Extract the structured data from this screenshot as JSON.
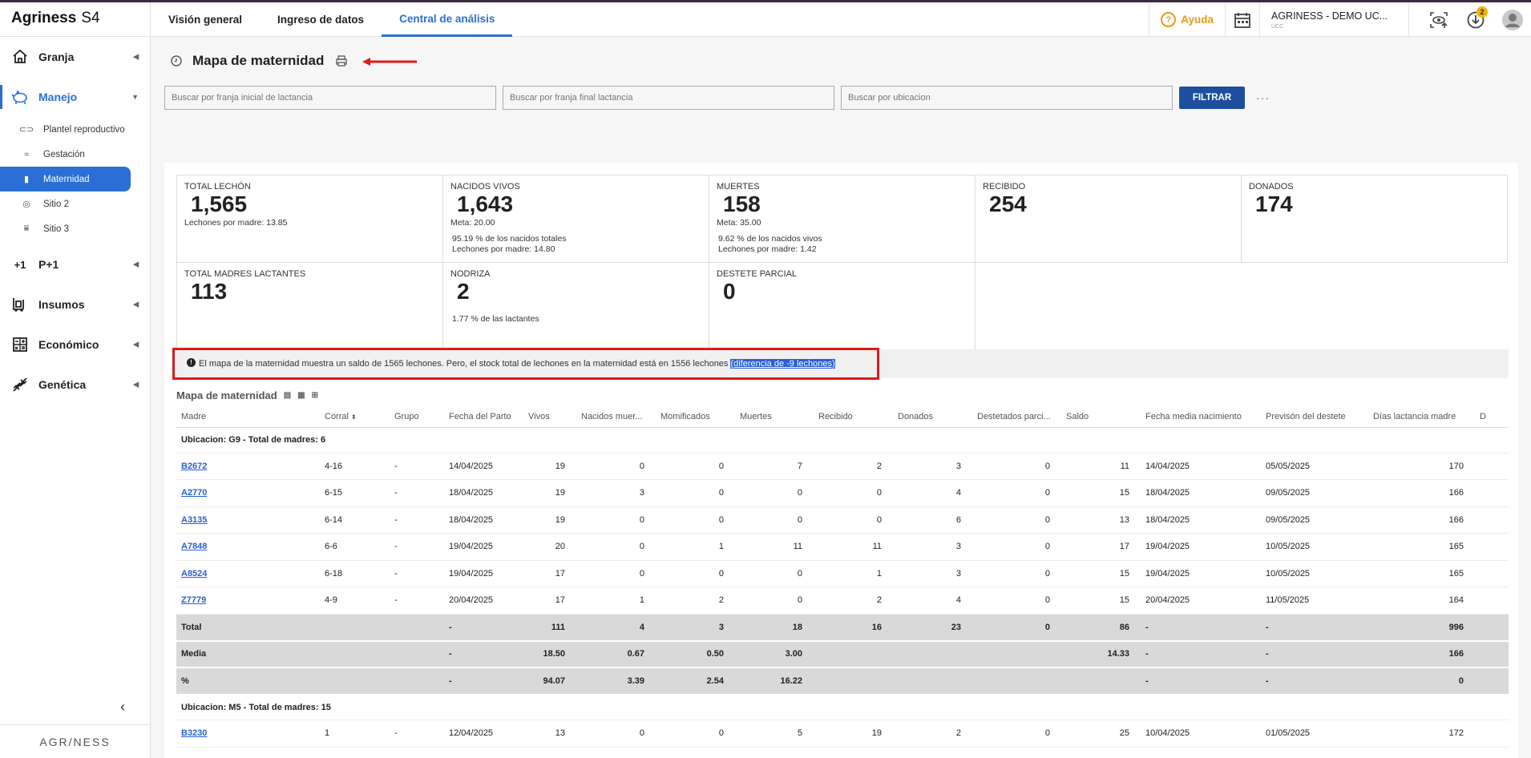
{
  "brand": {
    "name": "Agriness",
    "suffix": "S4",
    "footer": "AGR/NESS"
  },
  "sidebar": {
    "sections": [
      {
        "label": "Granja",
        "icon": "home-icon"
      },
      {
        "label": "Manejo",
        "icon": "pig-icon",
        "active": true
      },
      {
        "label": "P+1",
        "icon": "plus-one-icon"
      },
      {
        "label": "Insumos",
        "icon": "forklift-icon"
      },
      {
        "label": "Económico",
        "icon": "calculator-icon"
      },
      {
        "label": "Genética",
        "icon": "dna-icon"
      }
    ],
    "manejo_items": [
      {
        "label": "Plantel reproductivo"
      },
      {
        "label": "Gestación"
      },
      {
        "label": "Maternidad",
        "active": true
      },
      {
        "label": "Sitio 2"
      },
      {
        "label": "Sitio 3"
      }
    ]
  },
  "topbar": {
    "tabs": [
      "Visión general",
      "Ingreso de datos",
      "Central de análisis"
    ],
    "active_tab": "Central de análisis",
    "help": "Ayuda",
    "farm_name": "AGRINESS - DEMO UC...",
    "farm_sub": "UCC",
    "downloads_badge": "2"
  },
  "page": {
    "title": "Mapa de maternidad"
  },
  "filters": {
    "start_placeholder": "Buscar por franja inicial de lactancia",
    "end_placeholder": "Buscar por franja final lactancia",
    "location_placeholder": "Buscar por ubicacion",
    "button": "FILTRAR",
    "more": "···"
  },
  "kpis": {
    "total_lechon": {
      "label": "TOTAL LECHÓN",
      "value": "1,565",
      "sub": "Lechones por madre:  13.85"
    },
    "nacidos_vivos": {
      "label": "NACIDOS VIVOS",
      "value": "1,643",
      "meta": "Meta:  20.00",
      "line1": "95.19 % de los nacidos totales",
      "line2": "Lechones por madre:  14.80"
    },
    "muertes": {
      "label": "MUERTES",
      "value": "158",
      "meta": "Meta:  35.00",
      "line1": "9.62 % de los nacidos vivos",
      "line2": "Lechones por madre:  1.42"
    },
    "recibido": {
      "label": "RECIBIDO",
      "value": "254"
    },
    "donados": {
      "label": "DONADOS",
      "value": "174"
    },
    "madres": {
      "label": "TOTAL MADRES LACTANTES",
      "value": "113"
    },
    "nodriza": {
      "label": "NODRIZA",
      "value": "2",
      "line1": "1.77 % de las lactantes"
    },
    "destete": {
      "label": "DESTETE PARCIAL",
      "value": "0"
    }
  },
  "alert": {
    "text": "El mapa de la maternidad muestra un saldo de 1565 lechones. Pero, el stock total de lechones en la maternidad está en 1556 lechones",
    "highlight": "(diferencia de -9 lechones)"
  },
  "mapa": {
    "title": "Mapa de maternidad"
  },
  "table": {
    "columns": [
      "Madre",
      "Corral",
      "Grupo",
      "Fecha del Parto",
      "Vivos",
      "Nacidos muer...",
      "Momificados",
      "Muertes",
      "Recibido",
      "Donados",
      "Destetados parci...",
      "Saldo",
      "Fecha media nacimiento",
      "Previsón del destete",
      "Días lactancia madre",
      "D"
    ],
    "group1": "Ubicacion: G9 - Total de madres: 6",
    "rows": [
      [
        "B2672",
        "4-16",
        "-",
        "14/04/2025",
        "19",
        "0",
        "0",
        "7",
        "2",
        "3",
        "0",
        "11",
        "14/04/2025",
        "05/05/2025",
        "170"
      ],
      [
        "A2770",
        "6-15",
        "-",
        "18/04/2025",
        "19",
        "3",
        "0",
        "0",
        "0",
        "4",
        "0",
        "15",
        "18/04/2025",
        "09/05/2025",
        "166"
      ],
      [
        "A3135",
        "6-14",
        "-",
        "18/04/2025",
        "19",
        "0",
        "0",
        "0",
        "0",
        "6",
        "0",
        "13",
        "18/04/2025",
        "09/05/2025",
        "166"
      ],
      [
        "A7848",
        "6-6",
        "-",
        "19/04/2025",
        "20",
        "0",
        "1",
        "11",
        "11",
        "3",
        "0",
        "17",
        "19/04/2025",
        "10/05/2025",
        "165"
      ],
      [
        "A8524",
        "6-18",
        "-",
        "19/04/2025",
        "17",
        "0",
        "0",
        "0",
        "1",
        "3",
        "0",
        "15",
        "19/04/2025",
        "10/05/2025",
        "165"
      ],
      [
        "Z7779",
        "4-9",
        "-",
        "20/04/2025",
        "17",
        "1",
        "2",
        "0",
        "2",
        "4",
        "0",
        "15",
        "20/04/2025",
        "11/05/2025",
        "164"
      ]
    ],
    "summary": [
      [
        "Total",
        "",
        "",
        "-",
        "111",
        "4",
        "3",
        "18",
        "16",
        "23",
        "0",
        "86",
        "-",
        "-",
        "996"
      ],
      [
        "Media",
        "",
        "",
        "-",
        "18.50",
        "0.67",
        "0.50",
        "3.00",
        "",
        "",
        "",
        "14.33",
        "-",
        "-",
        "166"
      ],
      [
        "%",
        "",
        "",
        "-",
        "94.07",
        "3.39",
        "2.54",
        "16.22",
        "",
        "",
        "",
        "",
        "-",
        "-",
        "0"
      ]
    ],
    "group2": "Ubicacion: M5 - Total de madres: 15",
    "rows2": [
      [
        "B3230",
        "1",
        "-",
        "12/04/2025",
        "13",
        "0",
        "0",
        "5",
        "19",
        "2",
        "0",
        "25",
        "10/04/2025",
        "01/05/2025",
        "172"
      ]
    ]
  }
}
